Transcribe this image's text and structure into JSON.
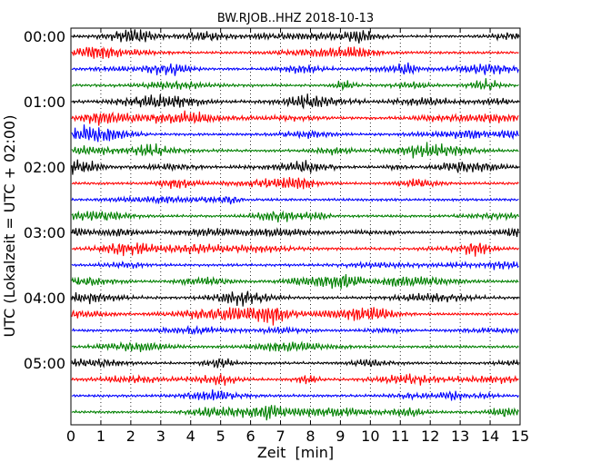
{
  "chart_data": {
    "type": "line",
    "title": "BW.RJOB..HHZ 2018-10-13",
    "xlabel": "Zeit  [min]",
    "ylabel": "UTC (Lokalzeit = UTC + 02:00)",
    "xlim": [
      0,
      15
    ],
    "x_ticks": [
      "0",
      "1",
      "2",
      "3",
      "4",
      "5",
      "6",
      "7",
      "8",
      "9",
      "10",
      "11",
      "12",
      "13",
      "14",
      "15"
    ],
    "y_tick_labels": [
      "00:00",
      "01:00",
      "02:00",
      "03:00",
      "04:00",
      "05:00"
    ],
    "trace_minutes": 15,
    "trace_count": 24,
    "grid": "vertical dotted",
    "colors": [
      "#000000",
      "#ff0000",
      "#0000ff",
      "#008000"
    ]
  }
}
